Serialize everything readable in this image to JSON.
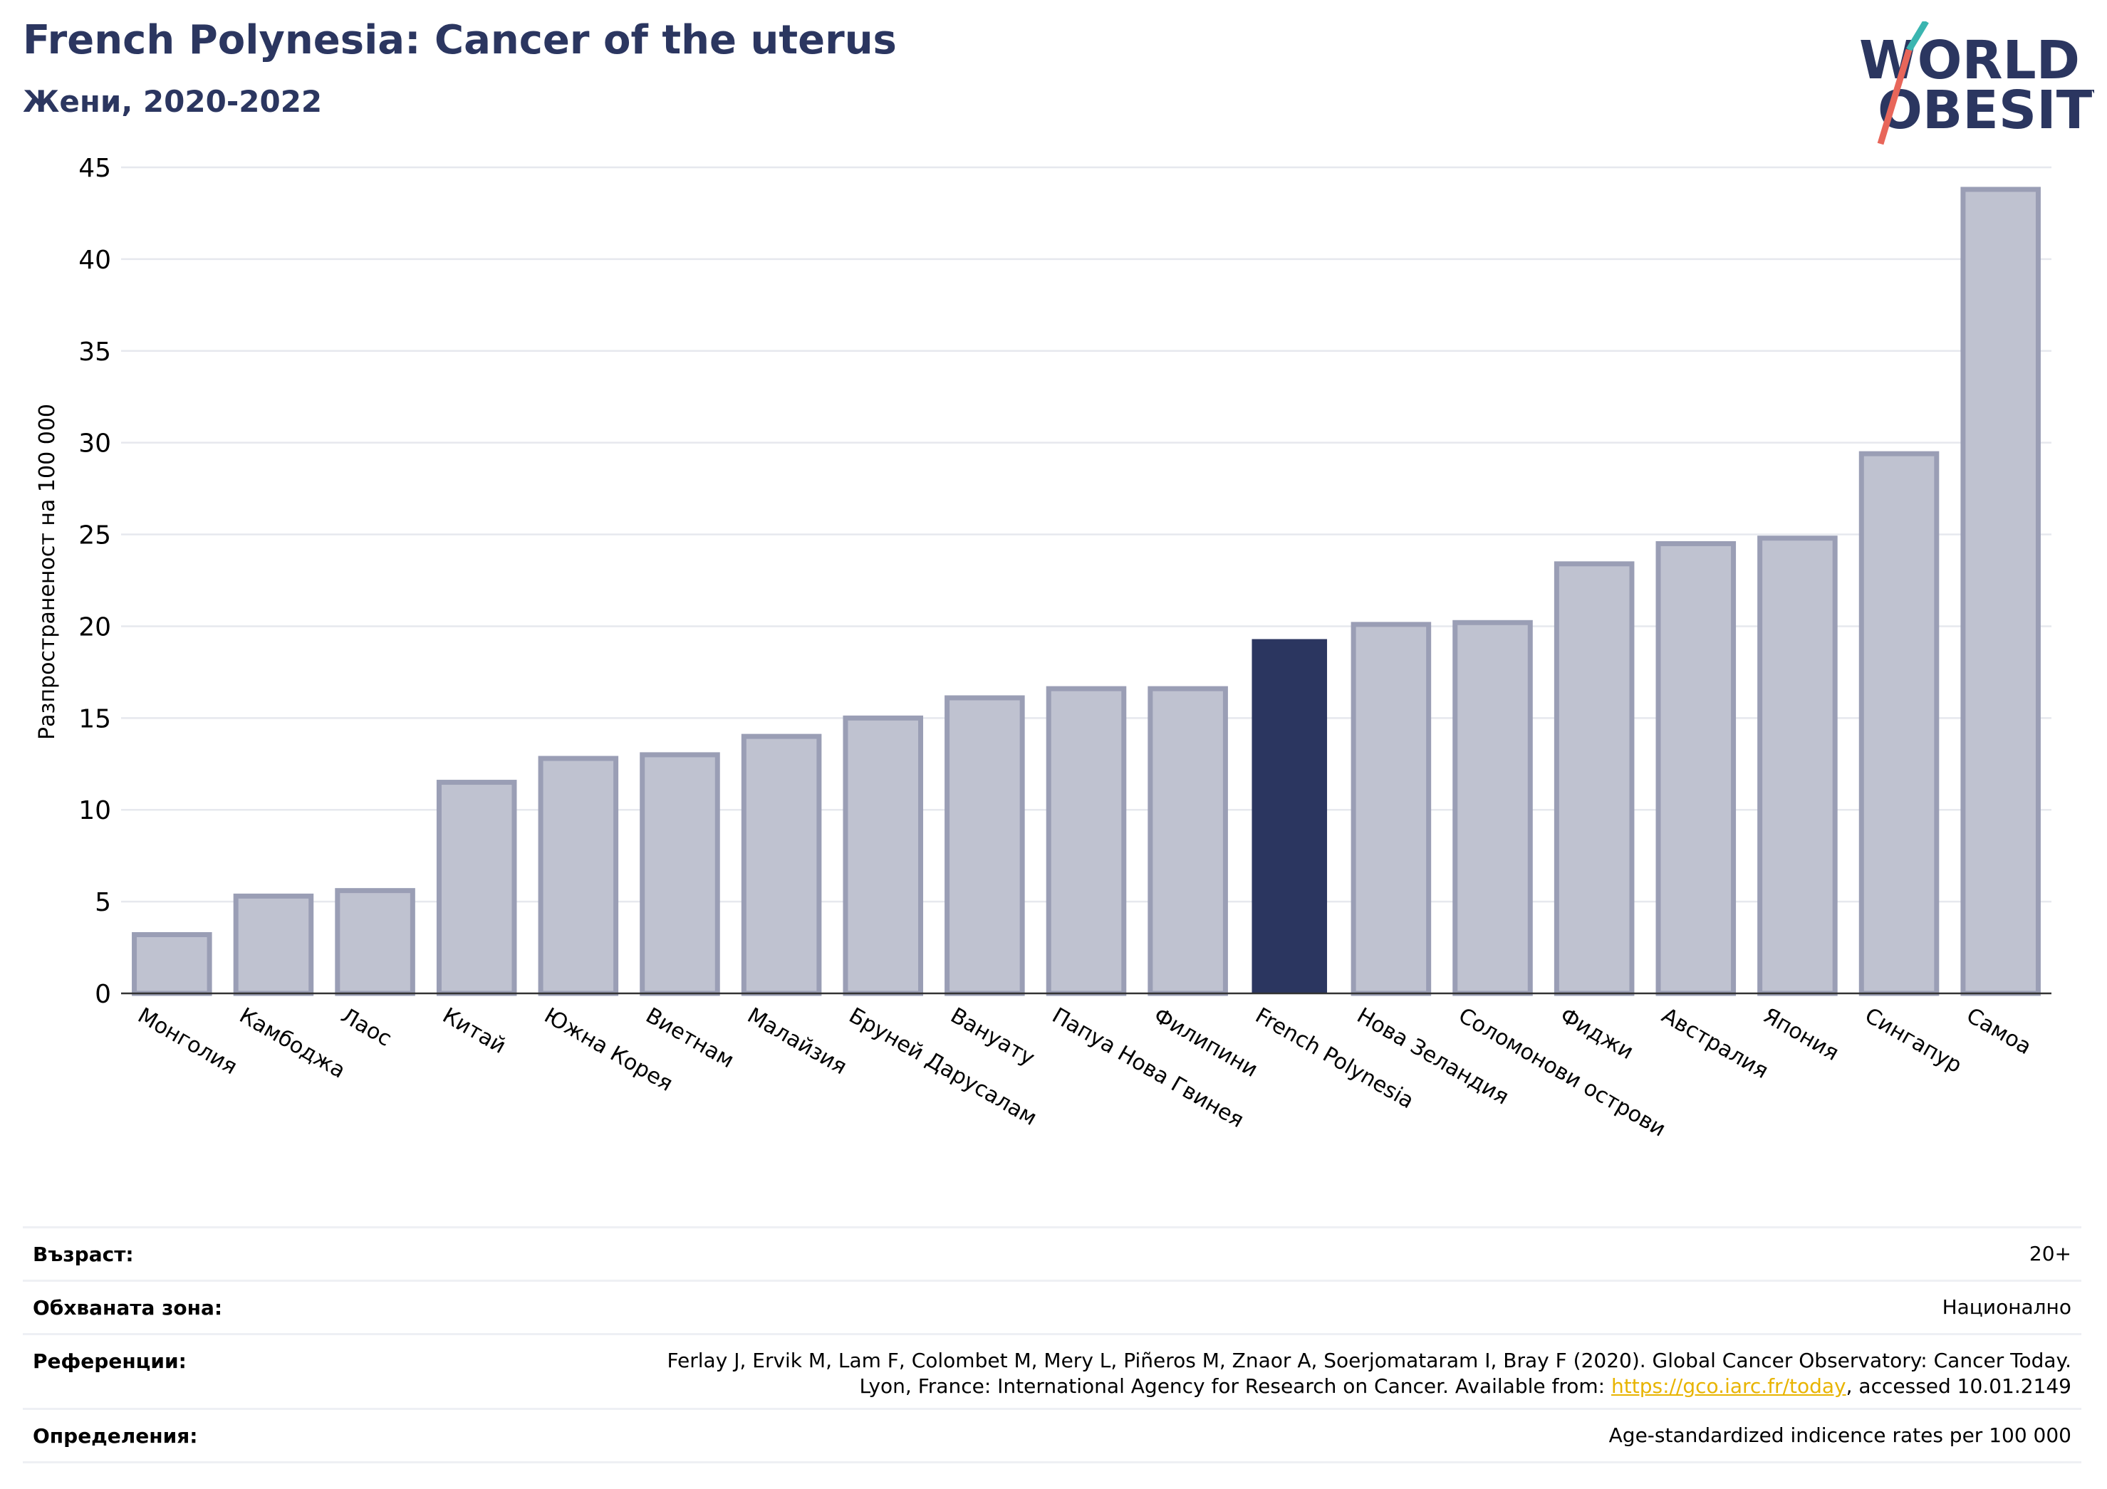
{
  "header": {
    "title": "French Polynesia: Cancer of the uterus",
    "subtitle": "Жени, 2020-2022"
  },
  "logo": {
    "line1": "WORLD",
    "line2": "OBESITY"
  },
  "colors": {
    "highlight": "#2b3660",
    "bar_fill": "#bfc2d0",
    "bar_stroke": "#9a9eb5",
    "title": "#2b3660",
    "logo_teal": "#3ab5b0",
    "logo_red": "#e8665a",
    "link": "#e8b400"
  },
  "chart_data": {
    "type": "bar",
    "ylabel": "Разпространеност  на 100 000",
    "xlabel": "",
    "ylim": [
      0,
      45
    ],
    "yticks": [
      0,
      5,
      10,
      15,
      20,
      25,
      30,
      35,
      40,
      45
    ],
    "grid": true,
    "highlight_category": "French Polynesia",
    "categories": [
      "Монголия",
      "Камбоджа",
      "Лаос",
      "Китай",
      "Южна Корея",
      "Виетнам",
      "Малайзия",
      "Бруней Дарусалам",
      "Вануату",
      "Папуа Нова Гвинея",
      "Филипини",
      "French Polynesia",
      "Нова Зеландия",
      "Соломонови острови",
      "Фиджи",
      "Австралия",
      "Япония",
      "Сингапур",
      "Самоа"
    ],
    "values": [
      3.2,
      5.3,
      5.6,
      11.5,
      12.8,
      13.0,
      14.0,
      15.0,
      16.1,
      16.6,
      16.6,
      19.3,
      20.1,
      20.2,
      23.4,
      24.5,
      24.8,
      29.4,
      43.8
    ]
  },
  "info": {
    "rows": [
      {
        "label": "Възраст:",
        "value_lines": [
          "20+"
        ]
      },
      {
        "label": "Обхваната зона:",
        "value_lines": [
          "Национално"
        ]
      },
      {
        "label": "Референции:",
        "value_lines": [
          "Ferlay J, Ervik M, Lam F, Colombet M, Mery L, Piñeros M, Znaor A, Soerjomataram I, Bray F (2020). Global Cancer Observatory: Cancer Today."
        ],
        "line2_prefix": "Lyon, France: International Agency for Research on Cancer. Available from: ",
        "line2_link": "https://gco.iarc.fr/today",
        "line2_suffix": ", accessed 10.01.2149"
      },
      {
        "label": "Определения:",
        "value_lines": [
          "Age-standardized indicence rates per 100 000"
        ]
      }
    ]
  }
}
